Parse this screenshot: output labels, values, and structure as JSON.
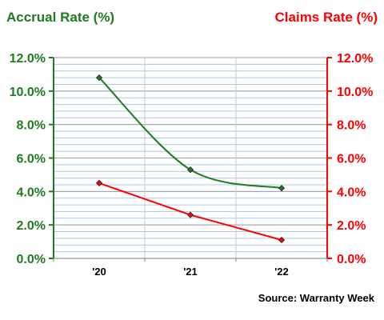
{
  "chart_data": {
    "type": "line",
    "categories": [
      "'20",
      "'21",
      "'22"
    ],
    "series": [
      {
        "name": "Accrual Rate (%)",
        "values": [
          10.8,
          5.3,
          4.2
        ],
        "color": "#1e7b1e",
        "axis": "left"
      },
      {
        "name": "Claims Rate (%)",
        "values": [
          4.5,
          2.6,
          1.1
        ],
        "color": "#ff0000",
        "axis": "right"
      }
    ],
    "left_axis": {
      "label": "Accrual Rate (%)",
      "ylim": [
        0,
        12
      ],
      "ticks": [
        "0.0%",
        "2.0%",
        "4.0%",
        "6.0%",
        "8.0%",
        "10.0%",
        "12.0%"
      ],
      "color": "#1e7b1e"
    },
    "right_axis": {
      "label": "Claims Rate (%)",
      "ylim": [
        0,
        12
      ],
      "ticks": [
        "0.0%",
        "2.0%",
        "4.0%",
        "6.0%",
        "8.0%",
        "10.0%",
        "12.0%"
      ],
      "color": "#ff0000"
    },
    "source": "Source: Warranty Week",
    "grid": true,
    "minor_grid_color": "#a9c8e8",
    "major_grid_color": "#a0a0a0"
  }
}
